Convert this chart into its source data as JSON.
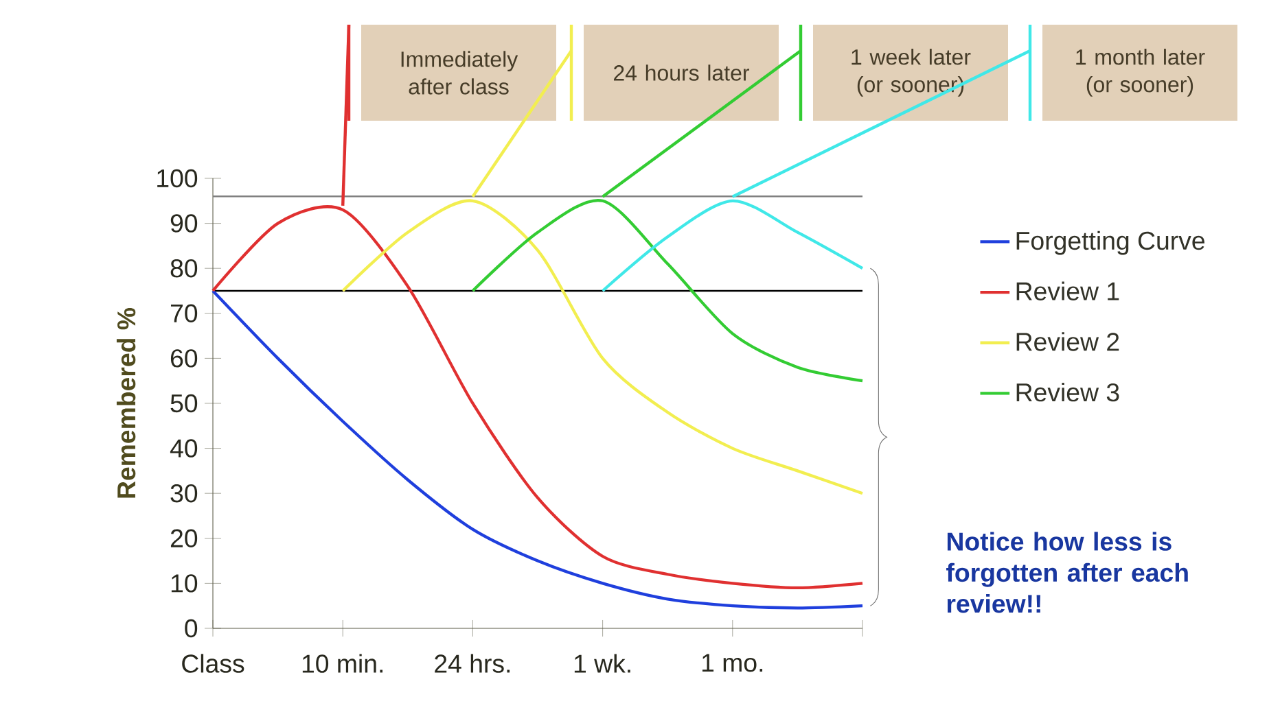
{
  "chart_data": {
    "type": "line",
    "ylabel": "Remembered %",
    "categories": [
      "Class",
      null,
      "10 min.",
      null,
      "24 hrs.",
      null,
      "1 wk.",
      null,
      "1 mo.",
      null,
      null
    ],
    "ylim": [
      0,
      100
    ],
    "yticks": [
      0,
      10,
      20,
      30,
      40,
      50,
      60,
      70,
      80,
      90,
      100
    ],
    "series": [
      {
        "name": "Forgetting Curve",
        "color": "#1f3fdd",
        "values": [
          75,
          60,
          46,
          33,
          22,
          15,
          10,
          6.5,
          5,
          4.5,
          5
        ]
      },
      {
        "name": "Review 1",
        "color": "#e03030",
        "values": [
          75,
          90,
          93,
          76,
          50,
          29,
          16,
          12,
          10,
          9,
          10
        ]
      },
      {
        "name": "Review 2",
        "color": "#f2ee50",
        "values": [
          null,
          null,
          75,
          88,
          95,
          84,
          60,
          48,
          40,
          35,
          30
        ]
      },
      {
        "name": "Review 3",
        "color": "#33cc33",
        "values": [
          null,
          null,
          null,
          null,
          75,
          88,
          95,
          81,
          65.5,
          58,
          55
        ]
      },
      {
        "color": "#40e8e8",
        "values": [
          null,
          null,
          null,
          null,
          null,
          null,
          75,
          87,
          95,
          88,
          80
        ]
      }
    ],
    "ref_lines": [
      {
        "axis": "y",
        "value": 96,
        "color": "#808080"
      },
      {
        "axis": "y",
        "value": 75,
        "color": "#000000"
      }
    ],
    "annotations": [
      "Immediately after class",
      "24 hours later",
      "1 week later (or sooner)",
      "1 month later (or sooner)",
      "Notice how less is forgotten after each review!!"
    ],
    "legend": "right",
    "line_style": "solid"
  }
}
